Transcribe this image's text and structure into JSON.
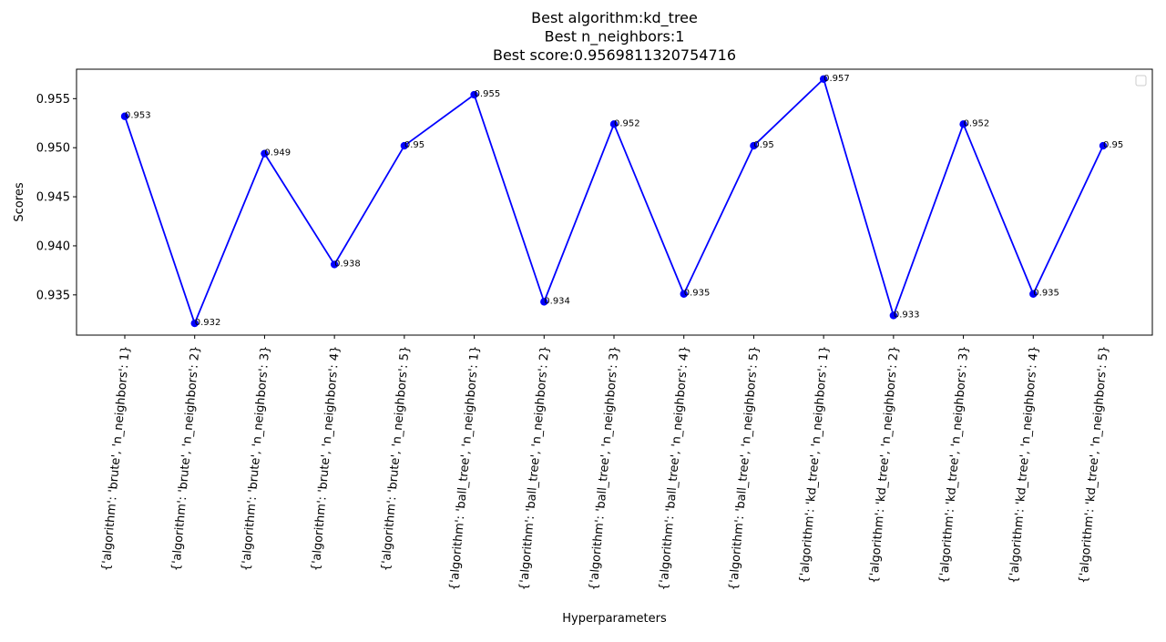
{
  "chart_data": {
    "type": "line",
    "title_lines": [
      "Best algorithm:kd_tree",
      "Best n_neighbors:1",
      "Best score:0.9569811320754716"
    ],
    "xlabel": "Hyperparameters",
    "ylabel": "Scores",
    "ylim": [
      0.9309,
      0.958
    ],
    "yticks": [
      "0.935",
      "0.940",
      "0.945",
      "0.950",
      "0.955"
    ],
    "grid": false,
    "legend": "top-right (empty)",
    "line_color": "#0000ff",
    "categories": [
      "{'algorithm': 'brute', 'n_neighbors': 1}",
      "{'algorithm': 'brute', 'n_neighbors': 2}",
      "{'algorithm': 'brute', 'n_neighbors': 3}",
      "{'algorithm': 'brute', 'n_neighbors': 4}",
      "{'algorithm': 'brute', 'n_neighbors': 5}",
      "{'algorithm': 'ball_tree', 'n_neighbors': 1}",
      "{'algorithm': 'ball_tree', 'n_neighbors': 2}",
      "{'algorithm': 'ball_tree', 'n_neighbors': 3}",
      "{'algorithm': 'ball_tree', 'n_neighbors': 4}",
      "{'algorithm': 'ball_tree', 'n_neighbors': 5}",
      "{'algorithm': 'kd_tree', 'n_neighbors': 1}",
      "{'algorithm': 'kd_tree', 'n_neighbors': 2}",
      "{'algorithm': 'kd_tree', 'n_neighbors': 3}",
      "{'algorithm': 'kd_tree', 'n_neighbors': 4}",
      "{'algorithm': 'kd_tree', 'n_neighbors': 5}"
    ],
    "values": [
      0.9532,
      0.9321,
      0.9494,
      0.9381,
      0.9502,
      0.9554,
      0.9343,
      0.9524,
      0.9351,
      0.9502,
      0.957,
      0.9329,
      0.9524,
      0.9351,
      0.9502
    ],
    "value_labels": [
      "0.953",
      "0.932",
      "0.949",
      "0.938",
      "0.95",
      "0.955",
      "0.934",
      "0.952",
      "0.935",
      "0.95",
      "0.957",
      "0.933",
      "0.952",
      "0.935",
      "0.95"
    ]
  }
}
